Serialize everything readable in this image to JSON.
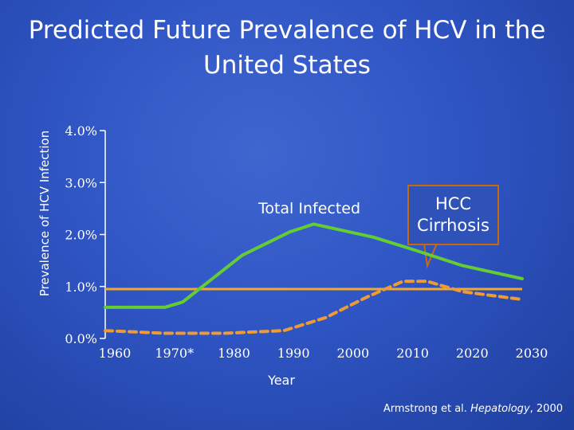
{
  "chart_data": {
    "type": "line",
    "title": "Predicted Future Prevalence of HCV in the United States",
    "xlabel": "Year",
    "ylabel": "Prevalence of HCV Infection",
    "x_tick_labels": [
      "1960",
      "1970*",
      "1980",
      "1990",
      "2000",
      "2010",
      "2020",
      "2030"
    ],
    "y_tick_labels": [
      "0.0%",
      "1.0%",
      "2.0%",
      "3.0%",
      "4.0%"
    ],
    "ylim": [
      0,
      4
    ],
    "xlim": [
      1960,
      2030
    ],
    "series": [
      {
        "name": "Total Infected",
        "color": "#66cc33",
        "style": "solid",
        "x": [
          1960,
          1970,
          1973,
          1983,
          1991,
          1995,
          2005,
          2012,
          2020,
          2030
        ],
        "y": [
          0.6,
          0.6,
          0.7,
          1.6,
          2.05,
          2.2,
          1.95,
          1.7,
          1.4,
          1.15
        ]
      },
      {
        "name": "HCC Cirrhosis",
        "color": "#ee9a35",
        "style": "dashed",
        "x": [
          1960,
          1970,
          1980,
          1990,
          1997,
          2004,
          2010,
          2014,
          2020,
          2030
        ],
        "y": [
          0.15,
          0.1,
          0.1,
          0.15,
          0.4,
          0.8,
          1.1,
          1.1,
          0.9,
          0.75
        ]
      }
    ],
    "reference_line": {
      "y": 0.95,
      "color": "#f0a830"
    },
    "callout_label": "HCC Cirrhosis"
  },
  "citation": {
    "authors": "Armstrong et al.",
    "journal": "Hepatology",
    "year": ", 2000"
  },
  "colors": {
    "axis": "#ffffff",
    "callout_border": "#c96a0a",
    "callout_fill": "#2f52b8"
  }
}
